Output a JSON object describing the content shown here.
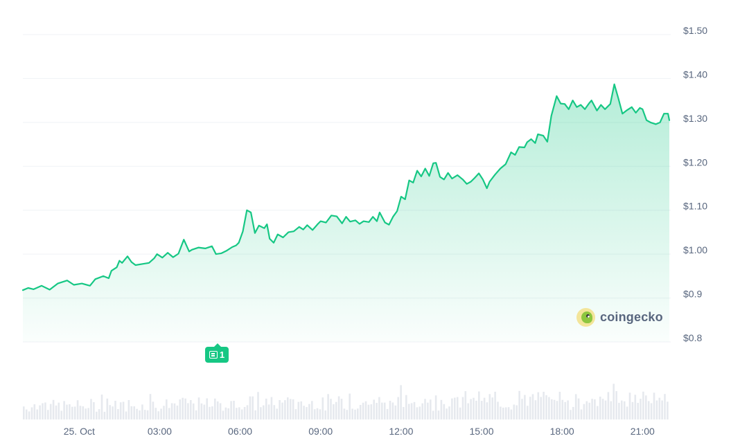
{
  "chart_data": {
    "type": "area",
    "title": "",
    "xlabel": "",
    "ylabel": "",
    "x_tick_labels": [
      "25. Oct",
      "03:00",
      "06:00",
      "09:00",
      "12:00",
      "15:00",
      "18:00",
      "21:00"
    ],
    "x_ticks_hours": [
      0,
      3,
      6,
      9,
      12,
      15,
      18,
      21
    ],
    "x_range_hours": [
      -2.1,
      22.0
    ],
    "y_tick_labels": [
      "$1.50",
      "$1.40",
      "$1.30",
      "$1.20",
      "$1.10",
      "$1.00",
      "$0.9",
      "$0.8"
    ],
    "y_ticks": [
      1.5,
      1.4,
      1.3,
      1.2,
      1.1,
      1.0,
      0.9,
      0.8
    ],
    "ylim": [
      0.8,
      1.5
    ],
    "grid": true,
    "line_color": "#16c784",
    "series": [
      {
        "points": [
          [
            -2.1,
            0.918
          ],
          [
            -1.9,
            0.923
          ],
          [
            -1.7,
            0.92
          ],
          [
            -1.4,
            0.928
          ],
          [
            -1.1,
            0.919
          ],
          [
            -0.8,
            0.933
          ],
          [
            -0.45,
            0.94
          ],
          [
            -0.2,
            0.93
          ],
          [
            0.1,
            0.933
          ],
          [
            0.4,
            0.928
          ],
          [
            0.6,
            0.943
          ],
          [
            0.9,
            0.95
          ],
          [
            1.1,
            0.945
          ],
          [
            1.2,
            0.962
          ],
          [
            1.4,
            0.97
          ],
          [
            1.5,
            0.985
          ],
          [
            1.6,
            0.98
          ],
          [
            1.8,
            0.995
          ],
          [
            1.95,
            0.982
          ],
          [
            2.1,
            0.975
          ],
          [
            2.4,
            0.978
          ],
          [
            2.6,
            0.98
          ],
          [
            2.8,
            0.991
          ],
          [
            2.9,
            1.0
          ],
          [
            3.1,
            0.992
          ],
          [
            3.3,
            1.003
          ],
          [
            3.5,
            0.993
          ],
          [
            3.7,
            1.001
          ],
          [
            3.9,
            1.033
          ],
          [
            4.1,
            1.006
          ],
          [
            4.2,
            1.01
          ],
          [
            4.45,
            1.015
          ],
          [
            4.7,
            1.013
          ],
          [
            4.95,
            1.018
          ],
          [
            5.1,
            1.0
          ],
          [
            5.3,
            1.002
          ],
          [
            5.5,
            1.008
          ],
          [
            5.7,
            1.016
          ],
          [
            5.85,
            1.02
          ],
          [
            5.95,
            1.026
          ],
          [
            6.1,
            1.052
          ],
          [
            6.25,
            1.1
          ],
          [
            6.4,
            1.095
          ],
          [
            6.55,
            1.048
          ],
          [
            6.7,
            1.065
          ],
          [
            6.9,
            1.059
          ],
          [
            7.0,
            1.068
          ],
          [
            7.1,
            1.035
          ],
          [
            7.25,
            1.026
          ],
          [
            7.4,
            1.045
          ],
          [
            7.6,
            1.038
          ],
          [
            7.8,
            1.05
          ],
          [
            8.0,
            1.052
          ],
          [
            8.2,
            1.062
          ],
          [
            8.35,
            1.056
          ],
          [
            8.5,
            1.066
          ],
          [
            8.7,
            1.055
          ],
          [
            8.9,
            1.069
          ],
          [
            9.0,
            1.075
          ],
          [
            9.2,
            1.072
          ],
          [
            9.4,
            1.088
          ],
          [
            9.6,
            1.086
          ],
          [
            9.8,
            1.07
          ],
          [
            9.95,
            1.085
          ],
          [
            10.1,
            1.074
          ],
          [
            10.3,
            1.077
          ],
          [
            10.45,
            1.069
          ],
          [
            10.6,
            1.075
          ],
          [
            10.8,
            1.073
          ],
          [
            10.95,
            1.085
          ],
          [
            11.1,
            1.075
          ],
          [
            11.2,
            1.095
          ],
          [
            11.4,
            1.072
          ],
          [
            11.55,
            1.067
          ],
          [
            11.7,
            1.085
          ],
          [
            11.85,
            1.098
          ],
          [
            12.0,
            1.131
          ],
          [
            12.15,
            1.125
          ],
          [
            12.3,
            1.168
          ],
          [
            12.45,
            1.163
          ],
          [
            12.6,
            1.19
          ],
          [
            12.75,
            1.177
          ],
          [
            12.9,
            1.195
          ],
          [
            13.05,
            1.178
          ],
          [
            13.2,
            1.207
          ],
          [
            13.3,
            1.208
          ],
          [
            13.45,
            1.176
          ],
          [
            13.6,
            1.17
          ],
          [
            13.75,
            1.185
          ],
          [
            13.9,
            1.172
          ],
          [
            14.1,
            1.18
          ],
          [
            14.3,
            1.17
          ],
          [
            14.45,
            1.16
          ],
          [
            14.6,
            1.165
          ],
          [
            14.75,
            1.174
          ],
          [
            14.9,
            1.184
          ],
          [
            15.05,
            1.17
          ],
          [
            15.2,
            1.15
          ],
          [
            15.3,
            1.165
          ],
          [
            15.5,
            1.181
          ],
          [
            15.7,
            1.195
          ],
          [
            15.9,
            1.205
          ],
          [
            16.1,
            1.232
          ],
          [
            16.25,
            1.226
          ],
          [
            16.4,
            1.244
          ],
          [
            16.6,
            1.243
          ],
          [
            16.7,
            1.255
          ],
          [
            16.85,
            1.262
          ],
          [
            17.0,
            1.253
          ],
          [
            17.1,
            1.273
          ],
          [
            17.3,
            1.27
          ],
          [
            17.45,
            1.256
          ],
          [
            17.6,
            1.315
          ],
          [
            17.8,
            1.36
          ],
          [
            17.95,
            1.343
          ],
          [
            18.1,
            1.342
          ],
          [
            18.25,
            1.33
          ],
          [
            18.4,
            1.35
          ],
          [
            18.55,
            1.335
          ],
          [
            18.7,
            1.34
          ],
          [
            18.85,
            1.33
          ],
          [
            19.0,
            1.343
          ],
          [
            19.1,
            1.35
          ],
          [
            19.3,
            1.327
          ],
          [
            19.45,
            1.34
          ],
          [
            19.6,
            1.33
          ],
          [
            19.8,
            1.342
          ],
          [
            19.95,
            1.387
          ],
          [
            20.1,
            1.355
          ],
          [
            20.25,
            1.32
          ],
          [
            20.4,
            1.327
          ],
          [
            20.6,
            1.335
          ],
          [
            20.75,
            1.322
          ],
          [
            20.9,
            1.333
          ],
          [
            21.0,
            1.33
          ],
          [
            21.15,
            1.305
          ],
          [
            21.3,
            1.3
          ],
          [
            21.5,
            1.296
          ],
          [
            21.65,
            1.3
          ],
          [
            21.8,
            1.32
          ],
          [
            21.95,
            1.32
          ],
          [
            22.0,
            1.305
          ]
        ]
      }
    ],
    "volume_bars": 240
  },
  "annotations": {
    "news_count": "1",
    "news_icon": "newspaper-icon"
  },
  "watermark": {
    "text": "coingecko",
    "logo": "gecko-logo-icon"
  }
}
